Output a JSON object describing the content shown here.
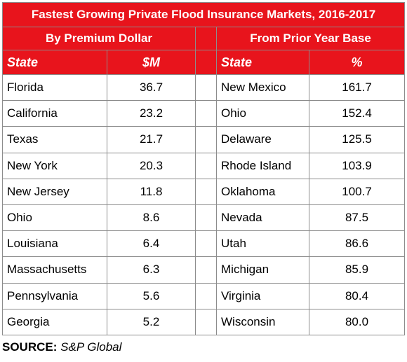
{
  "title": "Fastest Growing Private Flood Insurance Markets, 2016-2017",
  "left": {
    "heading": "By Premium Dollar",
    "col_state": "State",
    "col_value": "$M",
    "rows": [
      {
        "state": "Florida",
        "value": "36.7"
      },
      {
        "state": "California",
        "value": "23.2"
      },
      {
        "state": "Texas",
        "value": "21.7"
      },
      {
        "state": "New York",
        "value": "20.3"
      },
      {
        "state": "New Jersey",
        "value": "11.8"
      },
      {
        "state": "Ohio",
        "value": "8.6"
      },
      {
        "state": "Louisiana",
        "value": "6.4"
      },
      {
        "state": "Massachusetts",
        "value": "6.3"
      },
      {
        "state": "Pennsylvania",
        "value": "5.6"
      },
      {
        "state": "Georgia",
        "value": "5.2"
      }
    ]
  },
  "right": {
    "heading": "From Prior Year Base",
    "col_state": "State",
    "col_value": "%",
    "rows": [
      {
        "state": "New Mexico",
        "value": "161.7"
      },
      {
        "state": "Ohio",
        "value": "152.4"
      },
      {
        "state": "Delaware",
        "value": "125.5"
      },
      {
        "state": "Rhode Island",
        "value": "103.9"
      },
      {
        "state": "Oklahoma",
        "value": "100.7"
      },
      {
        "state": "Nevada",
        "value": "87.5"
      },
      {
        "state": "Utah",
        "value": "86.6"
      },
      {
        "state": "Michigan",
        "value": "85.9"
      },
      {
        "state": "Virginia",
        "value": "80.4"
      },
      {
        "state": "Wisconsin",
        "value": "80.0"
      }
    ]
  },
  "source": {
    "label": "SOURCE:",
    "text": "S&P Global"
  },
  "colors": {
    "header_red": "#e8141c",
    "header_text": "#ffffff",
    "border": "#8c8c8c"
  }
}
